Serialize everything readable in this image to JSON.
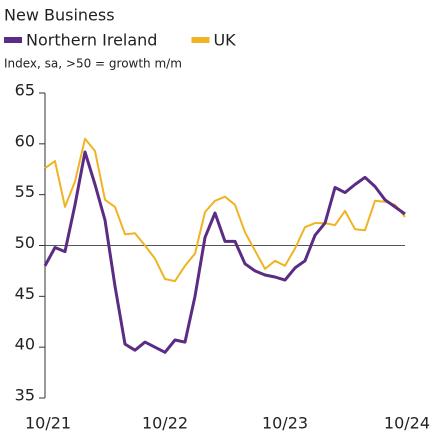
{
  "chart_data": {
    "type": "line",
    "title": "New Business",
    "subtitle": "Index, sa, >50 = growth m/m",
    "categories": [
      "10/21",
      null,
      null,
      null,
      null,
      null,
      null,
      null,
      null,
      null,
      null,
      null,
      "10/22",
      null,
      null,
      null,
      null,
      null,
      null,
      null,
      null,
      null,
      null,
      null,
      "10/23",
      null,
      null,
      null,
      null,
      null,
      null,
      null,
      null,
      null,
      null,
      null,
      "10/24"
    ],
    "series": [
      {
        "name": "Northern Ireland",
        "color": "#5b2c83",
        "values": [
          48,
          49.8,
          49.4,
          54,
          59.2,
          56,
          52.5,
          46,
          40.3,
          39.7,
          40.5,
          40,
          39.5,
          40.7,
          40.5,
          45,
          50.8,
          53.2,
          50.4,
          50.4,
          48.2,
          47.5,
          47.1,
          46.9,
          46.6,
          47.8,
          48.5,
          51,
          52.2,
          55.7,
          55.2,
          56,
          56.7,
          55.8,
          54.5,
          53.8,
          53.1
        ]
      },
      {
        "name": "UK",
        "color": "#f0b323",
        "values": [
          57.6,
          58.3,
          53.8,
          56.3,
          60.5,
          59.3,
          54.5,
          53.8,
          51.1,
          51.2,
          50,
          48.7,
          46.7,
          46.5,
          48,
          49.2,
          53.3,
          54.4,
          54.8,
          54,
          51.3,
          49.5,
          47.7,
          48.5,
          48,
          49.7,
          51.8,
          52.2,
          52.2,
          52,
          53.4,
          51.6,
          51.5,
          54.4,
          54.3,
          54,
          52.8
        ]
      }
    ],
    "ylim": [
      35,
      65
    ],
    "yticks": [
      35,
      40,
      45,
      50,
      55,
      60,
      65
    ],
    "reference_line": 50,
    "legend": "top-left",
    "grid": false
  }
}
